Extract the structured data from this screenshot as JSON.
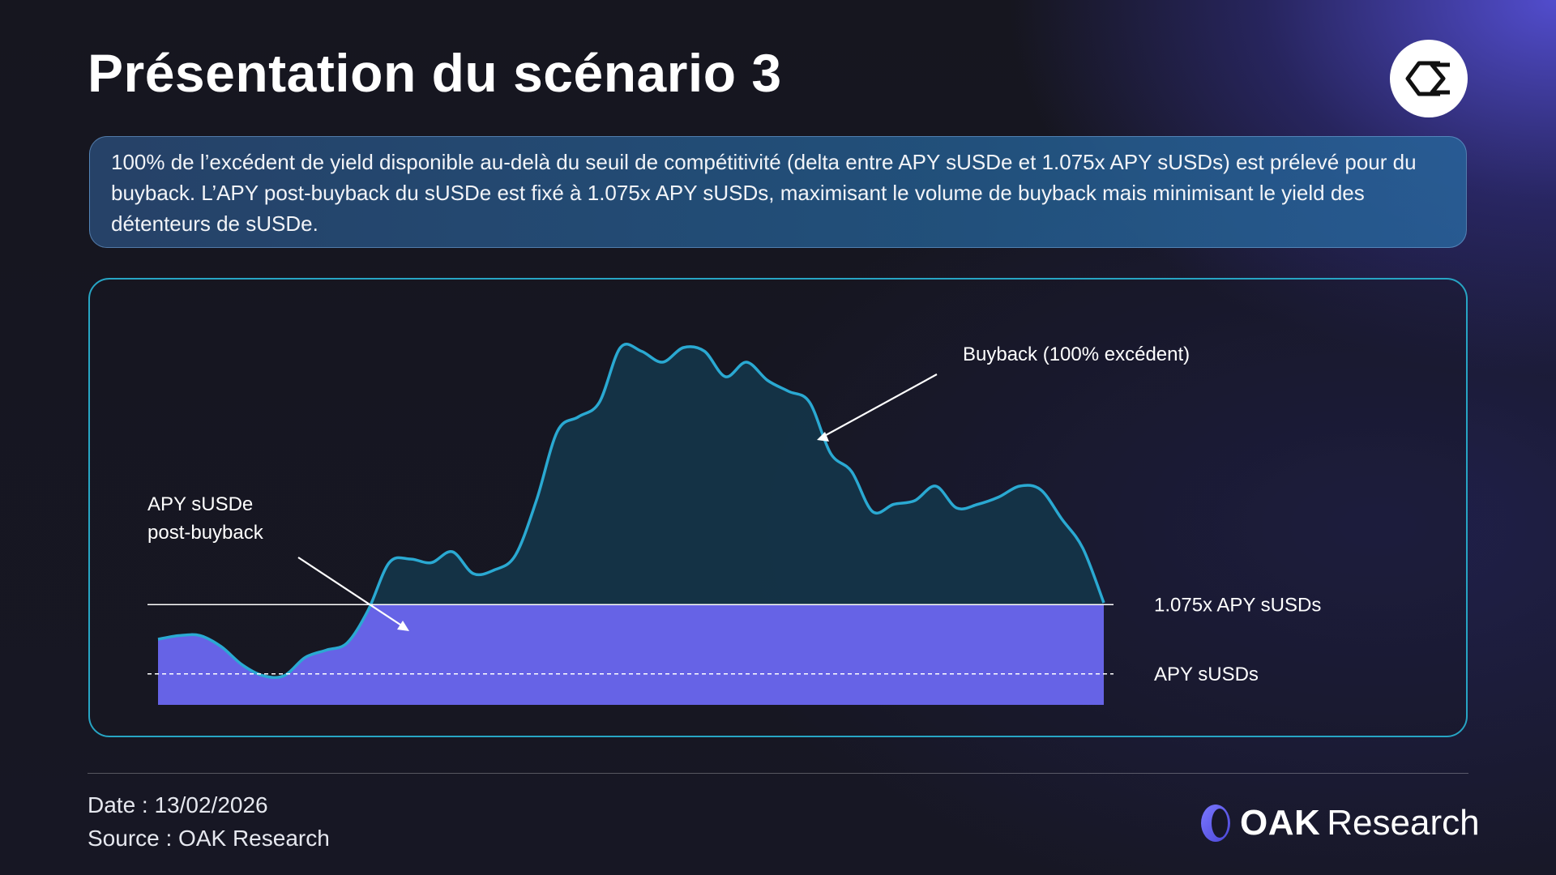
{
  "slide": {
    "title": "Présentation du scénario 3",
    "description": "100% de l’excédent de yield disponible au-delà du seuil de compétitivité (delta entre APY sUSDe et 1.075x APY sUSDs) est prélevé pour du buyback. L’APY post-buyback du sUSDe est fixé à 1.075x APY sUSDs, maximisant le volume de buyback mais minimisant le yield des détenteurs de sUSDe.",
    "logo_icon": "sigma-exchange-icon"
  },
  "chart_data": {
    "type": "area",
    "title": "",
    "xlabel": "",
    "ylabel": "",
    "grid": false,
    "x_axis_visible": false,
    "y_axis_visible": false,
    "units": "relative",
    "ylim": [
      0,
      10
    ],
    "threshold_lines": [
      {
        "label": "1.075x APY sUSDs",
        "value": 2.75,
        "style": "solid",
        "color": "#ffffff"
      },
      {
        "label": "APY sUSDs",
        "value": 0.85,
        "style": "dashed",
        "color": "#ffffff"
      }
    ],
    "series": [
      {
        "name": "APY sUSDe",
        "color": "#2aa9d2",
        "fill_above_threshold": "#143448",
        "fill_below_threshold": "#6663e6",
        "values": [
          1.8,
          1.9,
          1.9,
          1.6,
          1.1,
          0.8,
          0.8,
          1.3,
          1.5,
          1.7,
          2.6,
          3.9,
          4.0,
          3.9,
          4.2,
          3.6,
          3.7,
          4.1,
          5.6,
          7.5,
          7.9,
          8.3,
          9.8,
          9.7,
          9.4,
          9.8,
          9.7,
          9.0,
          9.4,
          8.9,
          8.6,
          8.3,
          6.9,
          6.4,
          5.3,
          5.5,
          5.6,
          6.0,
          5.4,
          5.5,
          5.7,
          6.0,
          5.9,
          5.1,
          4.3,
          2.8
        ]
      }
    ],
    "annotations": [
      {
        "text": "Buyback (100% excédent)",
        "target": "area above 1.075x APY sUSDs"
      },
      {
        "text_lines": [
          "APY sUSDe",
          "post-buyback"
        ],
        "target": "area below 1.075x APY sUSDs"
      }
    ]
  },
  "footer": {
    "date": "Date : 13/02/2026",
    "source": "Source : OAK Research",
    "brand_primary": "OAK",
    "brand_secondary": "Research",
    "brand_icon": "oak-logo-icon"
  }
}
